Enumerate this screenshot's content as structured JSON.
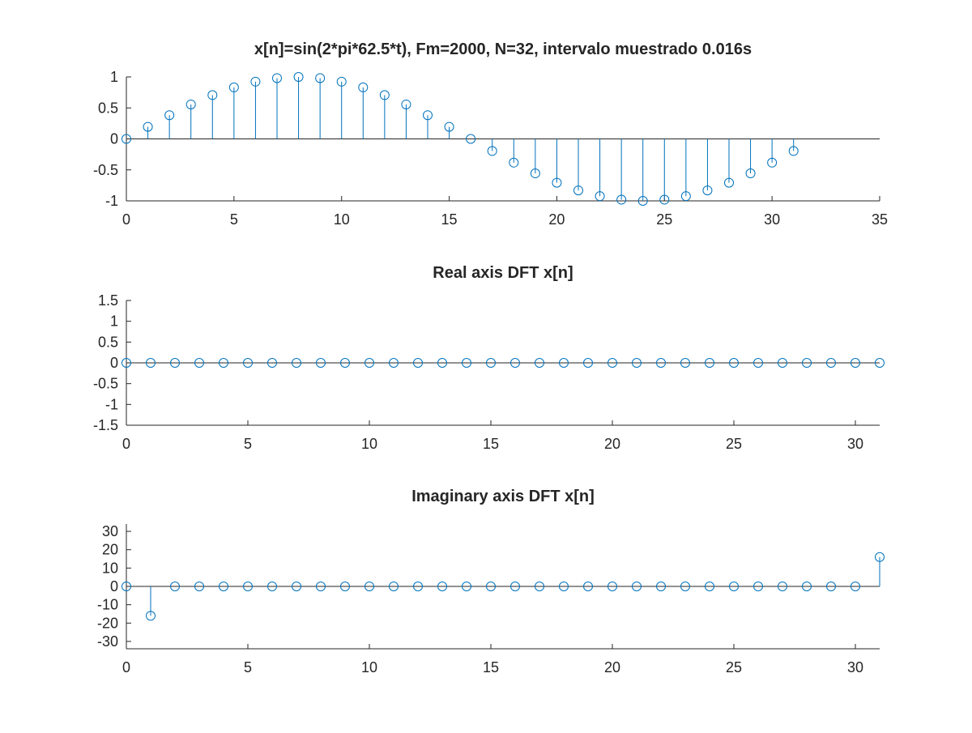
{
  "colors": {
    "series": "#0072bd",
    "axis": "#262626",
    "background": "#ffffff"
  },
  "chart_data": [
    {
      "type": "stem",
      "title": "x[n]=sin(2*pi*62.5*t), Fm=2000, N=32, intervalo muestrado 0.016s",
      "xlabel": "",
      "ylabel": "",
      "xlim": [
        0,
        35
      ],
      "ylim": [
        -1,
        1
      ],
      "xticks": [
        0,
        5,
        10,
        15,
        20,
        25,
        30,
        35
      ],
      "xtick_labels": [
        "0",
        "5",
        "10",
        "15",
        "20",
        "25",
        "30",
        "35"
      ],
      "yticks": [
        -1,
        -0.5,
        0,
        0.5,
        1
      ],
      "ytick_labels": [
        "-1",
        "-0.5",
        "0",
        "0.5",
        "1"
      ],
      "grid": false,
      "x": [
        0,
        1,
        2,
        3,
        4,
        5,
        6,
        7,
        8,
        9,
        10,
        11,
        12,
        13,
        14,
        15,
        16,
        17,
        18,
        19,
        20,
        21,
        22,
        23,
        24,
        25,
        26,
        27,
        28,
        29,
        30,
        31
      ],
      "values": [
        0,
        0.195,
        0.383,
        0.556,
        0.707,
        0.831,
        0.924,
        0.981,
        1,
        0.981,
        0.924,
        0.831,
        0.707,
        0.556,
        0.383,
        0.195,
        0,
        -0.195,
        -0.383,
        -0.556,
        -0.707,
        -0.831,
        -0.924,
        -0.981,
        -1,
        -0.981,
        -0.924,
        -0.831,
        -0.707,
        -0.556,
        -0.383,
        -0.195
      ]
    },
    {
      "type": "stem",
      "title": "Real axis DFT x[n]",
      "xlabel": "",
      "ylabel": "",
      "xlim": [
        0,
        31
      ],
      "ylim": [
        -1.5,
        1.5
      ],
      "xticks": [
        0,
        5,
        10,
        15,
        20,
        25,
        30
      ],
      "xtick_labels": [
        "0",
        "5",
        "10",
        "15",
        "20",
        "25",
        "30"
      ],
      "yticks": [
        -1.5,
        -1,
        -0.5,
        0,
        0.5,
        1,
        1.5
      ],
      "ytick_labels": [
        "-1.5",
        "-1",
        "-0.5",
        "0",
        "0.5",
        "1",
        "1.5"
      ],
      "grid": false,
      "x": [
        0,
        1,
        2,
        3,
        4,
        5,
        6,
        7,
        8,
        9,
        10,
        11,
        12,
        13,
        14,
        15,
        16,
        17,
        18,
        19,
        20,
        21,
        22,
        23,
        24,
        25,
        26,
        27,
        28,
        29,
        30,
        31
      ],
      "values": [
        0,
        0,
        0,
        0,
        0,
        0,
        0,
        0,
        0,
        0,
        0,
        0,
        0,
        0,
        0,
        0,
        0,
        0,
        0,
        0,
        0,
        0,
        0,
        0,
        0,
        0,
        0,
        0,
        0,
        0,
        0,
        0
      ]
    },
    {
      "type": "stem",
      "title": "Imaginary axis DFT x[n]",
      "xlabel": "",
      "ylabel": "",
      "xlim": [
        0,
        31
      ],
      "ylim": [
        -34,
        34
      ],
      "xticks": [
        0,
        5,
        10,
        15,
        20,
        25,
        30
      ],
      "xtick_labels": [
        "0",
        "5",
        "10",
        "15",
        "20",
        "25",
        "30"
      ],
      "yticks": [
        -30,
        -20,
        -10,
        0,
        10,
        20,
        30
      ],
      "ytick_labels": [
        "-30",
        "-20",
        "-10",
        "0",
        "10",
        "20",
        "30"
      ],
      "grid": false,
      "x": [
        0,
        1,
        2,
        3,
        4,
        5,
        6,
        7,
        8,
        9,
        10,
        11,
        12,
        13,
        14,
        15,
        16,
        17,
        18,
        19,
        20,
        21,
        22,
        23,
        24,
        25,
        26,
        27,
        28,
        29,
        30,
        31
      ],
      "values": [
        0,
        -16,
        0,
        0,
        0,
        0,
        0,
        0,
        0,
        0,
        0,
        0,
        0,
        0,
        0,
        0,
        0,
        0,
        0,
        0,
        0,
        0,
        0,
        0,
        0,
        0,
        0,
        0,
        0,
        0,
        0,
        16
      ]
    }
  ]
}
